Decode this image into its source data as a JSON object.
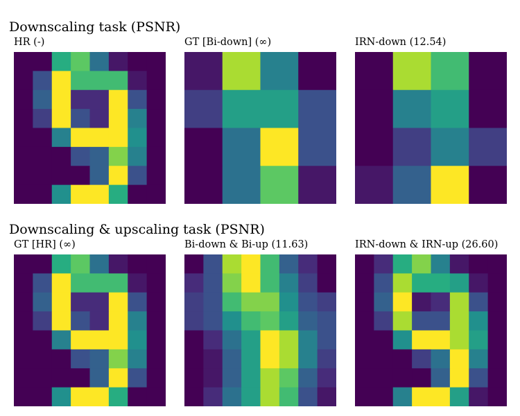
{
  "sections": [
    {
      "title": "Downscaling task (PSNR)"
    },
    {
      "title": "Downscaling & upscaling task (PSNR)"
    }
  ],
  "chart_data": [
    {
      "type": "heatmap",
      "title": "HR (-)",
      "colormap": "viridis",
      "vmin": 0,
      "vmax": 16,
      "values": [
        [
          0,
          0,
          10,
          12,
          6,
          1,
          0,
          0
        ],
        [
          0,
          4,
          16,
          11,
          11,
          11,
          1,
          0
        ],
        [
          0,
          5,
          16,
          2,
          2,
          16,
          4,
          0
        ],
        [
          0,
          3,
          16,
          4,
          2,
          16,
          7,
          0
        ],
        [
          0,
          0,
          7,
          16,
          16,
          16,
          8,
          0
        ],
        [
          0,
          0,
          0,
          4,
          5,
          13,
          7,
          0
        ],
        [
          0,
          0,
          0,
          0,
          5,
          16,
          4,
          0
        ],
        [
          0,
          0,
          8,
          16,
          16,
          10,
          0,
          0
        ]
      ]
    },
    {
      "type": "heatmap",
      "title": "GT [Bi-down] (∞)",
      "colormap": "viridis",
      "vmin": 0,
      "vmax": 16,
      "values": [
        [
          1,
          14,
          7,
          0
        ],
        [
          3,
          9,
          9,
          4
        ],
        [
          0,
          6,
          16,
          4
        ],
        [
          0,
          6,
          12,
          1
        ]
      ]
    },
    {
      "type": "heatmap",
      "title": "IRN-down (12.54)",
      "colormap": "viridis",
      "vmin": 0,
      "vmax": 16,
      "values": [
        [
          0,
          14,
          11,
          0
        ],
        [
          0,
          7,
          9,
          0
        ],
        [
          0,
          3,
          7,
          3
        ],
        [
          1,
          5,
          16,
          0
        ]
      ]
    },
    {
      "type": "heatmap",
      "title": "GT [HR] (∞)",
      "colormap": "viridis",
      "vmin": 0,
      "vmax": 16,
      "values": [
        [
          0,
          0,
          10,
          12,
          6,
          1,
          0,
          0
        ],
        [
          0,
          4,
          16,
          11,
          11,
          11,
          1,
          0
        ],
        [
          0,
          5,
          16,
          2,
          2,
          16,
          4,
          0
        ],
        [
          0,
          3,
          16,
          4,
          2,
          16,
          7,
          0
        ],
        [
          0,
          0,
          7,
          16,
          16,
          16,
          8,
          0
        ],
        [
          0,
          0,
          0,
          4,
          5,
          13,
          7,
          0
        ],
        [
          0,
          0,
          0,
          0,
          5,
          16,
          4,
          0
        ],
        [
          0,
          0,
          8,
          16,
          16,
          10,
          0,
          0
        ]
      ]
    },
    {
      "type": "heatmap",
      "title": "Bi-down & Bi-up (11.63)",
      "colormap": "viridis",
      "vmin": 0,
      "vmax": 16,
      "values": [
        [
          0,
          4,
          14,
          16,
          11,
          5,
          2,
          0
        ],
        [
          2,
          4,
          13,
          16,
          11,
          7,
          3,
          0
        ],
        [
          3,
          4,
          11,
          13,
          13,
          8,
          4,
          3
        ],
        [
          3,
          4,
          8,
          11,
          12,
          9,
          5,
          4
        ],
        [
          0,
          2,
          6,
          9,
          16,
          14,
          7,
          4
        ],
        [
          0,
          1,
          5,
          9,
          16,
          14,
          7,
          3
        ],
        [
          0,
          1,
          5,
          9,
          14,
          12,
          5,
          2
        ],
        [
          0,
          2,
          6,
          9,
          14,
          11,
          4,
          1
        ]
      ]
    },
    {
      "type": "heatmap",
      "title": "IRN-down & IRN-up (26.60)",
      "colormap": "viridis",
      "vmin": 0,
      "vmax": 16,
      "values": [
        [
          0,
          2,
          10,
          13,
          7,
          1,
          0,
          0
        ],
        [
          0,
          4,
          14,
          10,
          10,
          9,
          1,
          0
        ],
        [
          0,
          5,
          16,
          1,
          2,
          14,
          4,
          0
        ],
        [
          0,
          3,
          14,
          4,
          4,
          14,
          8,
          0
        ],
        [
          0,
          0,
          8,
          16,
          16,
          14,
          9,
          0
        ],
        [
          0,
          0,
          0,
          3,
          6,
          16,
          7,
          0
        ],
        [
          0,
          0,
          0,
          0,
          5,
          16,
          4,
          0
        ],
        [
          0,
          0,
          7,
          16,
          16,
          9,
          1,
          0
        ]
      ]
    }
  ]
}
